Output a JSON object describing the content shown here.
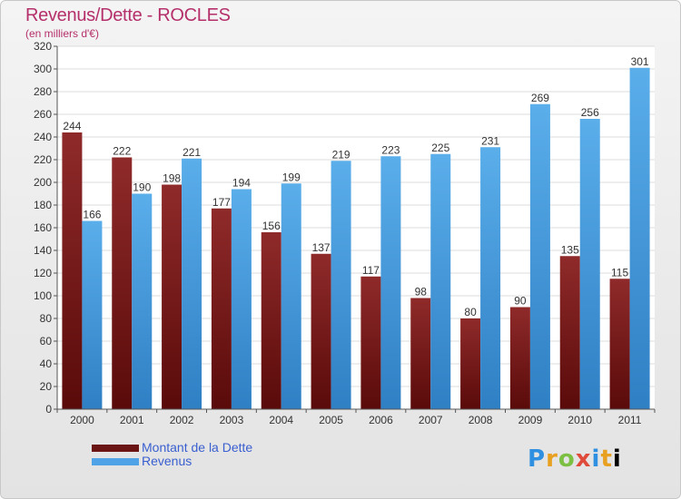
{
  "chart_data": {
    "type": "bar",
    "title": "Revenus/Dette - ROCLES",
    "subtitle": "(en milliers d'€)",
    "categories": [
      "2000",
      "2001",
      "2002",
      "2003",
      "2004",
      "2005",
      "2006",
      "2007",
      "2008",
      "2009",
      "2010",
      "2011"
    ],
    "series": [
      {
        "name": "Montant de la Dette",
        "color": "#7a1f1f",
        "values": [
          244,
          222,
          198,
          177,
          156,
          137,
          117,
          98,
          80,
          90,
          135,
          115
        ]
      },
      {
        "name": "Revenus",
        "color": "#4fa3e6",
        "values": [
          166,
          190,
          221,
          194,
          199,
          219,
          223,
          225,
          231,
          269,
          256,
          301
        ]
      }
    ],
    "ylim": [
      0,
      320
    ],
    "yticks": [
      0,
      20,
      40,
      60,
      80,
      100,
      120,
      140,
      160,
      180,
      200,
      220,
      240,
      260,
      280,
      300,
      320
    ],
    "grid": true,
    "legend": "bottom-left"
  },
  "logo_text": "Proxiti"
}
